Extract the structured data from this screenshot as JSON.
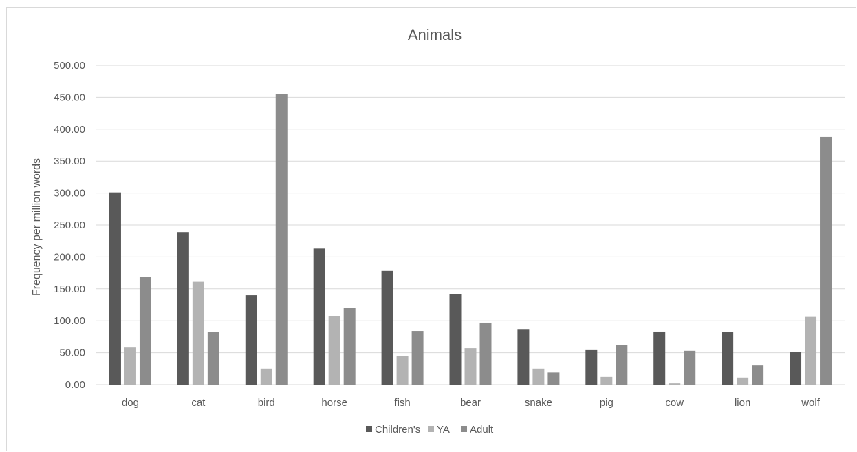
{
  "chart_data": {
    "type": "bar",
    "title": "Animals",
    "xlabel": "",
    "ylabel": "Frequency per million words",
    "ylim": [
      0,
      500
    ],
    "ytick_step": 50,
    "ytick_labels": [
      "0.00",
      "50.00",
      "100.00",
      "150.00",
      "200.00",
      "250.00",
      "300.00",
      "350.00",
      "400.00",
      "450.00",
      "500.00"
    ],
    "grid": true,
    "legend_position": "bottom",
    "categories": [
      "dog",
      "cat",
      "bird",
      "horse",
      "fish",
      "bear",
      "snake",
      "pig",
      "cow",
      "lion",
      "wolf"
    ],
    "series": [
      {
        "name": "Children's",
        "color": "#595959",
        "values": [
          301,
          239,
          140,
          213,
          178,
          142,
          87,
          54,
          83,
          82,
          51
        ]
      },
      {
        "name": "YA",
        "color": "#b3b3b3",
        "values": [
          58,
          161,
          25,
          107,
          45,
          57,
          25,
          12,
          2,
          11,
          106
        ]
      },
      {
        "name": "Adult",
        "color": "#8c8c8c",
        "values": [
          169,
          82,
          455,
          120,
          84,
          97,
          19,
          62,
          53,
          30,
          388
        ]
      }
    ]
  }
}
